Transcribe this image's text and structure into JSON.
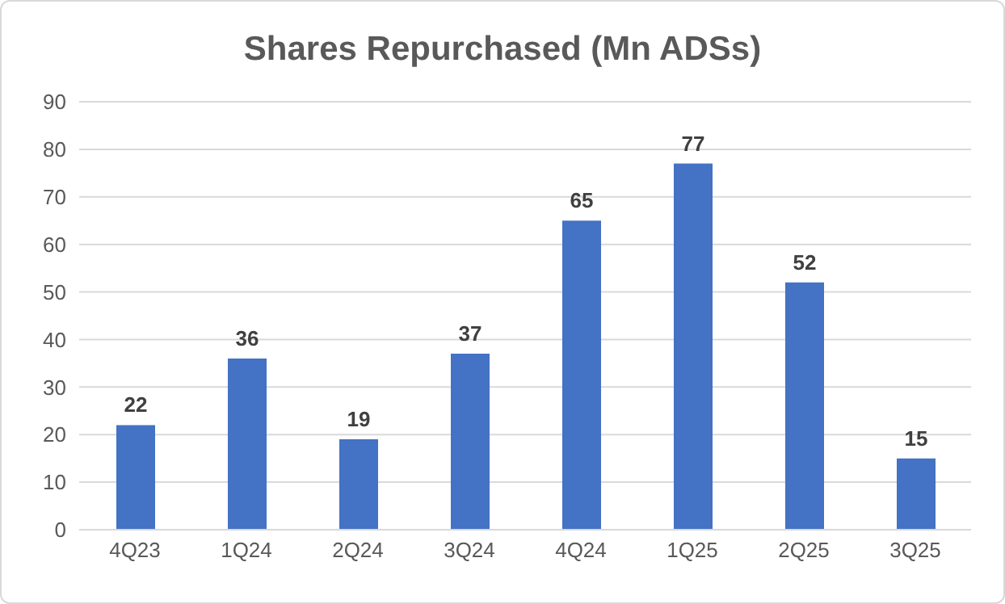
{
  "chart_data": {
    "type": "bar",
    "title": "Shares Repurchased (Mn ADSs)",
    "categories": [
      "4Q23",
      "1Q24",
      "2Q24",
      "3Q24",
      "4Q24",
      "1Q25",
      "2Q25",
      "3Q25"
    ],
    "values": [
      22,
      36,
      19,
      37,
      65,
      77,
      52,
      15
    ],
    "color": "#4472c4",
    "ylim": [
      0,
      90
    ],
    "yticks": [
      0,
      10,
      20,
      30,
      40,
      50,
      60,
      70,
      80,
      90
    ],
    "grid": "y",
    "data_labels": true
  }
}
